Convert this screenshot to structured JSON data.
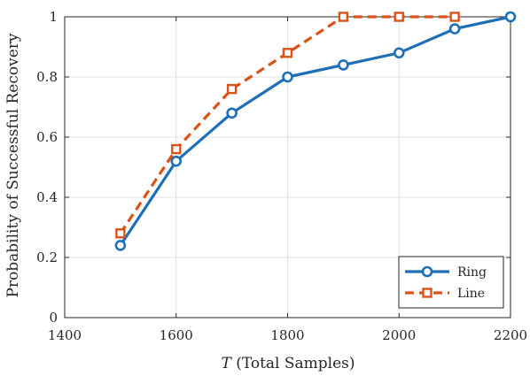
{
  "chart_data": {
    "type": "line",
    "xlabel_symbol": "T",
    "xlabel_text": " (Total Samples)",
    "ylabel": "Probability of Successful Recovery",
    "xlim": [
      1400,
      2200
    ],
    "ylim": [
      0,
      1
    ],
    "xticks": [
      1400,
      1600,
      1800,
      2000,
      2200
    ],
    "yticks": [
      0,
      0.2,
      0.4,
      0.6,
      0.8,
      1
    ],
    "xtick_labels": [
      "1400",
      "1600",
      "1800",
      "2000",
      "2200"
    ],
    "ytick_labels": [
      "0",
      "0.2",
      "0.4",
      "0.6",
      "0.8",
      "1"
    ],
    "grid": true,
    "legend_position": "bottom-right",
    "series": [
      {
        "name": "Ring",
        "color": "#1f6fb7",
        "line_style": "solid",
        "marker": "circle",
        "x": [
          1500,
          1600,
          1700,
          1800,
          1900,
          2000,
          2100,
          2200
        ],
        "y": [
          0.24,
          0.52,
          0.68,
          0.8,
          0.84,
          0.88,
          0.96,
          1.0
        ]
      },
      {
        "name": "Line",
        "color": "#d95319",
        "line_style": "dashed",
        "marker": "square",
        "x": [
          1500,
          1600,
          1700,
          1800,
          1900,
          2000,
          2100
        ],
        "y": [
          0.28,
          0.56,
          0.76,
          0.88,
          1.0,
          1.0,
          1.0
        ]
      }
    ]
  }
}
